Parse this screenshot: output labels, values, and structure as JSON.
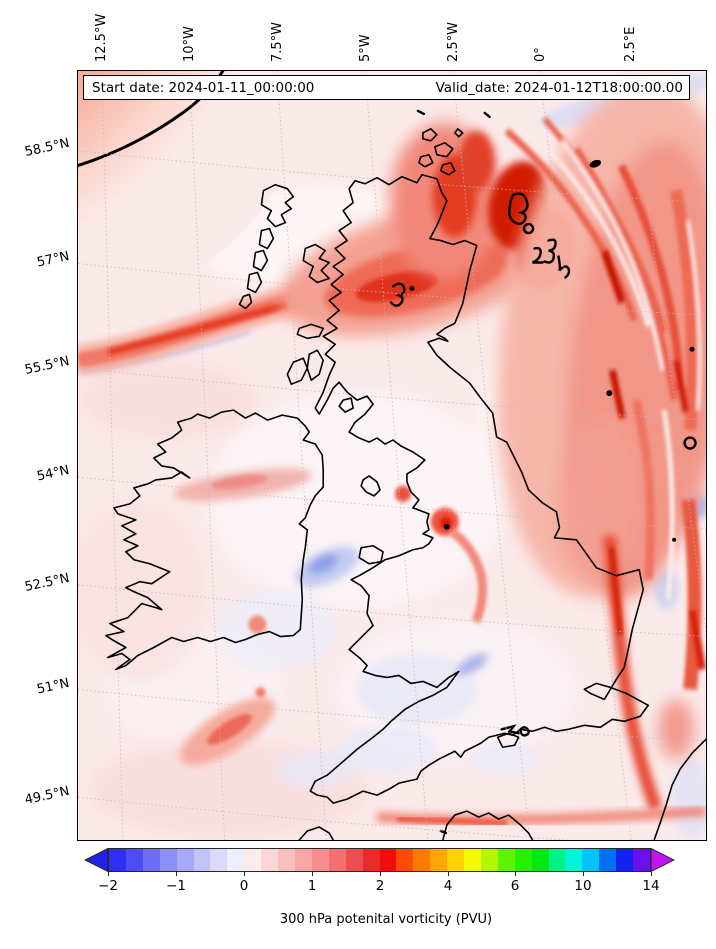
{
  "figure": {
    "kind": "matplotlib-style forecast map",
    "region": "British Isles / North-East Atlantic"
  },
  "title_box": {
    "start_label": "Start date: 2024-01-11_00:00:00",
    "valid_label": "Valid_date: 2024-01-12T18:00:00.00"
  },
  "axes": {
    "top_ticks": [
      "12.5°W",
      "10°W",
      "7.5°W",
      "5°W",
      "2.5°W",
      "0°",
      "2.5°E"
    ],
    "left_ticks": [
      "58.5°N",
      "57°N",
      "55.5°N",
      "54°N",
      "52.5°N",
      "51°N",
      "49.5°N"
    ]
  },
  "colorbar": {
    "caption": "300 hPa potenital vorticity (PVU)",
    "ticks": [
      "−2",
      "−1",
      "0",
      "1",
      "2",
      "4",
      "6",
      "10",
      "14"
    ],
    "arrow_left_color": "#2222ec",
    "arrow_right_color": "#c213f2",
    "segment_colors": [
      "#2f2ff1",
      "#4d4df4",
      "#6d6df7",
      "#8e8ef9",
      "#a8a8fb",
      "#c2c2fc",
      "#dadafd",
      "#eeeefe",
      "#fdeaea",
      "#fbd6d6",
      "#f9bfbf",
      "#f7a7a7",
      "#f58e8e",
      "#f27070",
      "#ee4e4e",
      "#e92b2b",
      "#f20d0d",
      "#ff4b00",
      "#ff7b00",
      "#ffa600",
      "#ffd200",
      "#f4fa00",
      "#b2f700",
      "#5ef400",
      "#28ee00",
      "#00e816",
      "#00f287",
      "#00f5d8",
      "#00c4f7",
      "#0071f5",
      "#1421ee",
      "#6a11ef"
    ]
  },
  "chart_data": {
    "type": "heatmap",
    "subtype": "filled contour map (PV field) with coastlines",
    "title": "300 hPa potenital vorticity (PVU)",
    "start_date": "2024-01-11_00:00:00",
    "valid_date": "2024-01-12T18:00:00.00",
    "variable": "potential vorticity at 300 hPa",
    "units": "PVU",
    "x_axis": {
      "label": "longitude",
      "ticks": [
        "12.5°W",
        "10°W",
        "7.5°W",
        "5°W",
        "2.5°W",
        "0°",
        "2.5°E"
      ],
      "tick_side": "top",
      "labels_rotated_deg": -90
    },
    "y_axis": {
      "label": "latitude",
      "ticks": [
        "58.5°N",
        "57°N",
        "55.5°N",
        "54°N",
        "52.5°N",
        "51°N",
        "49.5°N"
      ],
      "tick_side": "left"
    },
    "grid": "dotted graticule",
    "legend_position": "horizontal colorbar, bottom, extended arrows both ends",
    "colorbar_tick_values": [
      -2,
      -1,
      0,
      1,
      2,
      4,
      6,
      10,
      14
    ],
    "colorbar_levels": [
      -2,
      -1.75,
      -1.5,
      -1.25,
      -1,
      -0.75,
      -0.5,
      -0.25,
      0,
      0.25,
      0.5,
      0.75,
      1,
      1.25,
      1.5,
      1.75,
      2,
      2.5,
      3,
      3.5,
      4,
      4.5,
      5,
      5.5,
      6,
      7,
      8,
      9,
      10,
      11,
      12,
      13,
      14
    ],
    "field_summary": [
      "intense PV maximum (>2 PVU, black contour) over top-left corner north-west of Ireland",
      "red PV streamer from west across northern Scotland with small 2 PVU contours near Orkney/Moray Firth",
      "large fibrous high-PV band over the North Sea along the right edge with embedded dark-red cores and small black 2 PVU contours",
      "comma-shaped red PV anomaly over north-west England near Liverpool with black dot core",
      "weak negative (light blue) anomalies over the Irish Sea, Wales, Channel and along the eastern edge",
      "background field mostly 0-1 PVU (pale pink)"
    ]
  }
}
